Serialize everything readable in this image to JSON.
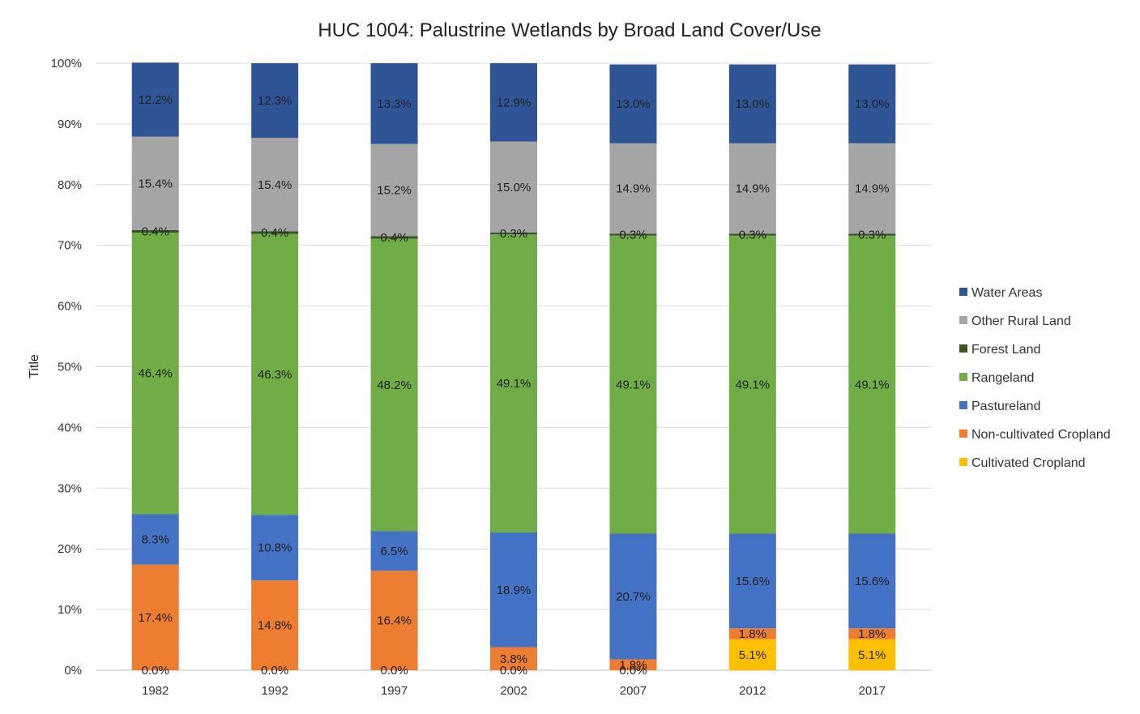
{
  "chart_data": {
    "type": "bar",
    "stacked": true,
    "title": "HUC 1004: Palustrine Wetlands by Broad Land Cover/Use",
    "xlabel": "",
    "ylabel": "Title",
    "ylim": [
      0,
      100
    ],
    "yticks": [
      "0%",
      "10%",
      "20%",
      "30%",
      "40%",
      "50%",
      "60%",
      "70%",
      "80%",
      "90%",
      "100%"
    ],
    "grid": true,
    "legend_position": "right",
    "categories": [
      "1982",
      "1992",
      "1997",
      "2002",
      "2007",
      "2012",
      "2017"
    ],
    "series": [
      {
        "name": "Cultivated Cropland",
        "color": "#FFC000",
        "values": [
          0.0,
          0.0,
          0.0,
          0.0,
          0.0,
          5.1,
          5.1
        ],
        "labels": [
          "0.0%",
          "0.0%",
          "0.0%",
          "0.0%",
          "0.0%",
          "5.1%",
          "5.1%"
        ]
      },
      {
        "name": "Non-cultivated Cropland",
        "color": "#ED7D31",
        "values": [
          17.4,
          14.8,
          16.4,
          3.8,
          1.8,
          1.8,
          1.8
        ],
        "labels": [
          "17.4%",
          "14.8%",
          "16.4%",
          "3.8%",
          "1.8%",
          "1.8%",
          "1.8%"
        ]
      },
      {
        "name": "Pastureland",
        "color": "#4472C4",
        "values": [
          8.3,
          10.8,
          6.5,
          18.9,
          20.7,
          15.6,
          15.6
        ],
        "labels": [
          "8.3%",
          "10.8%",
          "6.5%",
          "18.9%",
          "20.7%",
          "15.6%",
          "15.6%"
        ]
      },
      {
        "name": "Rangeland",
        "color": "#70AD47",
        "values": [
          46.4,
          46.3,
          48.2,
          49.1,
          49.1,
          49.1,
          49.1
        ],
        "labels": [
          "46.4%",
          "46.3%",
          "48.2%",
          "49.1%",
          "49.1%",
          "49.1%",
          "49.1%"
        ]
      },
      {
        "name": "Forest Land",
        "color": "#375623",
        "values": [
          0.4,
          0.4,
          0.4,
          0.3,
          0.3,
          0.3,
          0.3
        ],
        "labels": [
          "0.4%",
          "0.4%",
          "0.4%",
          "0.3%",
          "0.3%",
          "0.3%",
          "0.3%"
        ]
      },
      {
        "name": "Other Rural Land",
        "color": "#A5A5A5",
        "values": [
          15.4,
          15.4,
          15.2,
          15.0,
          14.9,
          14.9,
          14.9
        ],
        "labels": [
          "15.4%",
          "15.4%",
          "15.2%",
          "15.0%",
          "14.9%",
          "14.9%",
          "14.9%"
        ]
      },
      {
        "name": "Water Areas",
        "color": "#2F5597",
        "values": [
          12.2,
          12.3,
          13.3,
          12.9,
          13.0,
          13.0,
          13.0
        ],
        "labels": [
          "12.2%",
          "12.3%",
          "13.3%",
          "12.9%",
          "13.0%",
          "13.0%",
          "13.0%"
        ]
      }
    ]
  }
}
